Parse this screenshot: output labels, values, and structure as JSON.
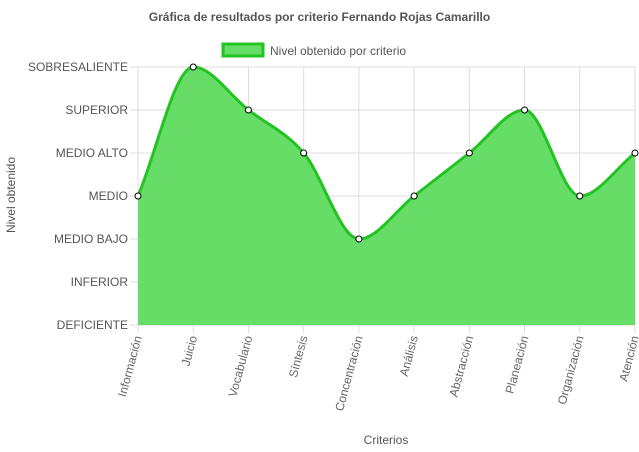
{
  "chart_data": {
    "type": "area",
    "title": "Gráfica de resultados por criterio Fernando Rojas Camarillo",
    "xlabel": "Criterios",
    "ylabel": "Nivel obtenido",
    "y_levels": [
      "DEFICIENTE",
      "INFERIOR",
      "MEDIO BAJO",
      "MEDIO",
      "MEDIO ALTO",
      "SUPERIOR",
      "SOBRESALIENTE"
    ],
    "categories": [
      "Información",
      "Juicio",
      "Vocabulario",
      "Síntesis",
      "Concentración",
      "Análisis",
      "Abstracción",
      "Planeación",
      "Organización",
      "Atención"
    ],
    "series": [
      {
        "name": "Nivel obtenido por criterio",
        "values": [
          "MEDIO",
          "SOBRESALIENTE",
          "SUPERIOR",
          "MEDIO ALTO",
          "MEDIO BAJO",
          "MEDIO",
          "MEDIO ALTO",
          "SUPERIOR",
          "MEDIO",
          "MEDIO ALTO"
        ],
        "fill_color": "#66dd66",
        "line_color": "#22c322"
      }
    ],
    "legend_position": "top",
    "grid": true
  }
}
